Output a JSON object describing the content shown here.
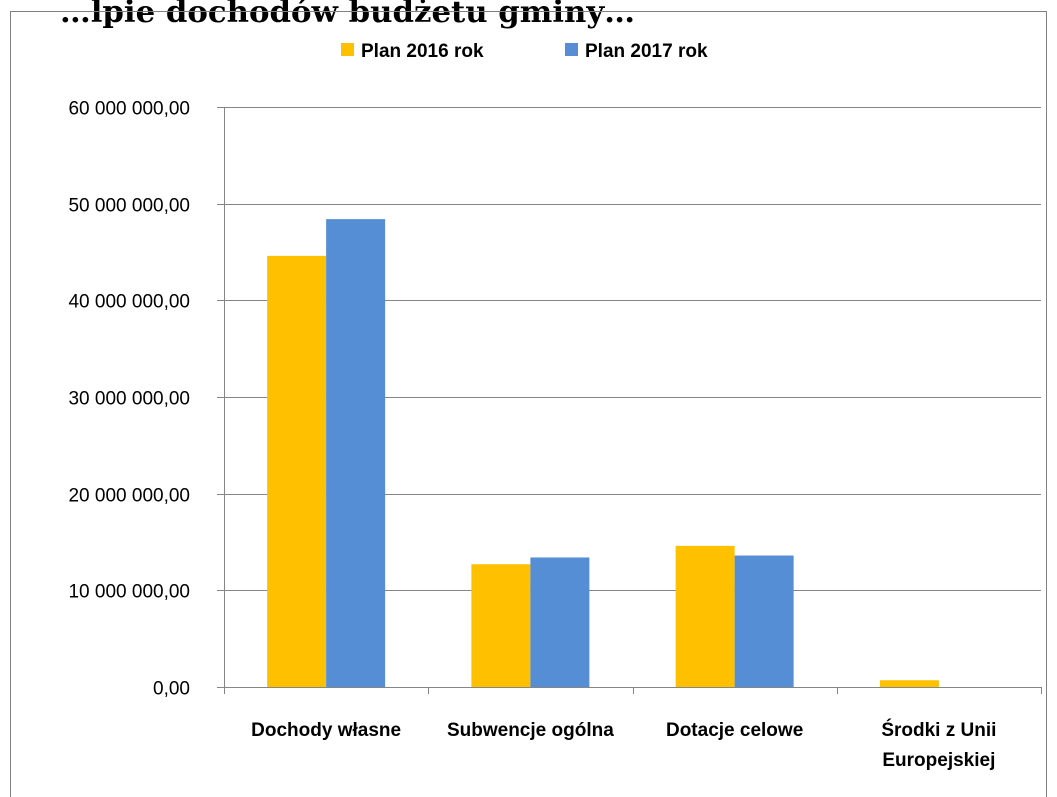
{
  "chart_data": {
    "type": "bar",
    "title": "…lpie dochodów budżetu gminy…",
    "categories": [
      [
        "Dochody własne"
      ],
      [
        "Subwencje ogólna"
      ],
      [
        "Dotacje celowe"
      ],
      [
        "Środki z Unii",
        "Europejskiej"
      ]
    ],
    "series": [
      {
        "name": "Plan 2016 rok",
        "color": "#FFC000",
        "values": [
          44600000,
          12700000,
          14600000,
          700000
        ]
      },
      {
        "name": "Plan 2017 rok",
        "color": "#558ED5",
        "values": [
          48400000,
          13400000,
          13600000,
          0
        ]
      }
    ],
    "ylim": [
      0,
      60000000
    ],
    "yticks": [
      0,
      10000000,
      20000000,
      30000000,
      40000000,
      50000000,
      60000000
    ],
    "ytick_labels": [
      "0,00",
      "10 000 000,00",
      "20 000 000,00",
      "30 000 000,00",
      "40 000 000,00",
      "50 000 000,00",
      "60 000 000,00"
    ],
    "grid": true,
    "legend_position": "top-center",
    "xlabel": "",
    "ylabel": ""
  }
}
